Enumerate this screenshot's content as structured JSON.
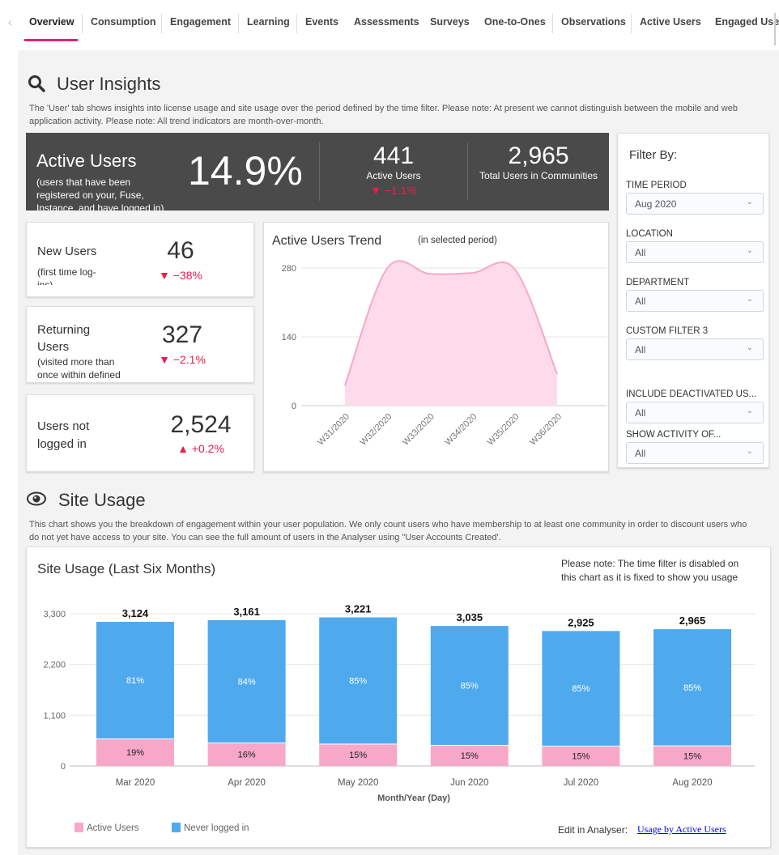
{
  "tabs": [
    "Overview",
    "Consumption",
    "Engagement",
    "Learning",
    "Events",
    "Assessments",
    "Surveys",
    "One-to-Ones",
    "Observations",
    "Active Users",
    "Engaged Use"
  ],
  "active_tab": "Overview",
  "user_insights": {
    "title": "User Insights",
    "icon": "search-icon",
    "description": "The 'User' tab shows insights into license usage and site usage over the period defined by the time filter. Please note: At present we cannot distinguish between the mobile and web application activity. Please note: All trend indicators are month-over-month."
  },
  "active_users_box": {
    "title": "Active Users",
    "subtitle": "(users that have been registered on your, Fuse, Instance, and have logged in)",
    "percent": "14.9%",
    "count": "441",
    "count_label": "Active Users",
    "count_trend": "▼ −1.1%",
    "total": "2,965",
    "total_label": "Total Users in Communities"
  },
  "cards": [
    {
      "title": "New Users",
      "subtitle": "(first time log-ins)",
      "value": "46",
      "trend": "▼ −38%"
    },
    {
      "title": "Returning Users",
      "subtitle": "(visited more than once within defined period)",
      "value": "327",
      "trend": "▼ −2.1%"
    },
    {
      "title": "Users not logged in",
      "subtitle": "",
      "value": "2,524",
      "trend": "▲ +0.2%"
    }
  ],
  "trend_chart": {
    "title": "Active Users Trend",
    "subtitle": "(in selected period)",
    "type": "area",
    "x": [
      "W31/2020",
      "W32/2020",
      "W33/2020",
      "W34/2020",
      "W35/2020",
      "W36/2020"
    ],
    "values": [
      41,
      280,
      268,
      270,
      278,
      64
    ],
    "yticks": [
      "0",
      "140",
      "280"
    ],
    "ylim": [
      0,
      280
    ],
    "color": "#f7a8c8"
  },
  "filters": {
    "title": "Filter By:",
    "items": [
      {
        "label": "TIME PERIOD",
        "value": "Aug 2020"
      },
      {
        "label": "LOCATION",
        "value": "All"
      },
      {
        "label": "DEPARTMENT",
        "value": "All"
      },
      {
        "label": "CUSTOM FILTER 3",
        "value": "All"
      },
      {
        "label": "INCLUDE DEACTIVATED US...",
        "value": "All"
      },
      {
        "label": "SHOW ACTIVITY OF...",
        "value": "All"
      }
    ]
  },
  "site_usage": {
    "title": "Site Usage",
    "icon": "eye-icon",
    "description": "This chart shows you the breakdown of engagement within your user population. We only count users who have membership to at least one community in order to discount users who do not yet have access to your site. You can see the full amount of users in the Analyser using \"User Accounts Created'.",
    "note": "Please note: The time filter is disabled on this chart as it is fixed to show you usage",
    "edit_label": "Edit in Analyser:",
    "edit_link": "Usage by Active Users"
  },
  "chart_data": {
    "type": "bar",
    "stacked": true,
    "title": "Site Usage (Last Six Months)",
    "xlabel": "Month/Year (Day)",
    "ylabel": "",
    "ylim": [
      0,
      3300
    ],
    "yticks": [
      "0",
      "1,100",
      "2,200",
      "3,300"
    ],
    "categories": [
      "Mar 2020",
      "Apr 2020",
      "May 2020",
      "Jun 2020",
      "Jul 2020",
      "Aug 2020"
    ],
    "totals": [
      3124,
      3161,
      3221,
      3035,
      2925,
      2965
    ],
    "total_labels": [
      "3,124",
      "3,161",
      "3,221",
      "3,035",
      "2,925",
      "2,965"
    ],
    "series": [
      {
        "name": "Active Users",
        "color": "#f7a8c8",
        "percents": [
          "19%",
          "16%",
          "15%",
          "15%",
          "15%",
          "15%"
        ],
        "fractions": [
          0.19,
          0.16,
          0.15,
          0.15,
          0.15,
          0.15
        ]
      },
      {
        "name": "Never logged in",
        "color": "#4faaed",
        "percents": [
          "81%",
          "84%",
          "85%",
          "85%",
          "85%",
          "85%"
        ],
        "fractions": [
          0.81,
          0.84,
          0.85,
          0.85,
          0.85,
          0.85
        ]
      }
    ],
    "legend": "bottom-left",
    "grid": true
  }
}
